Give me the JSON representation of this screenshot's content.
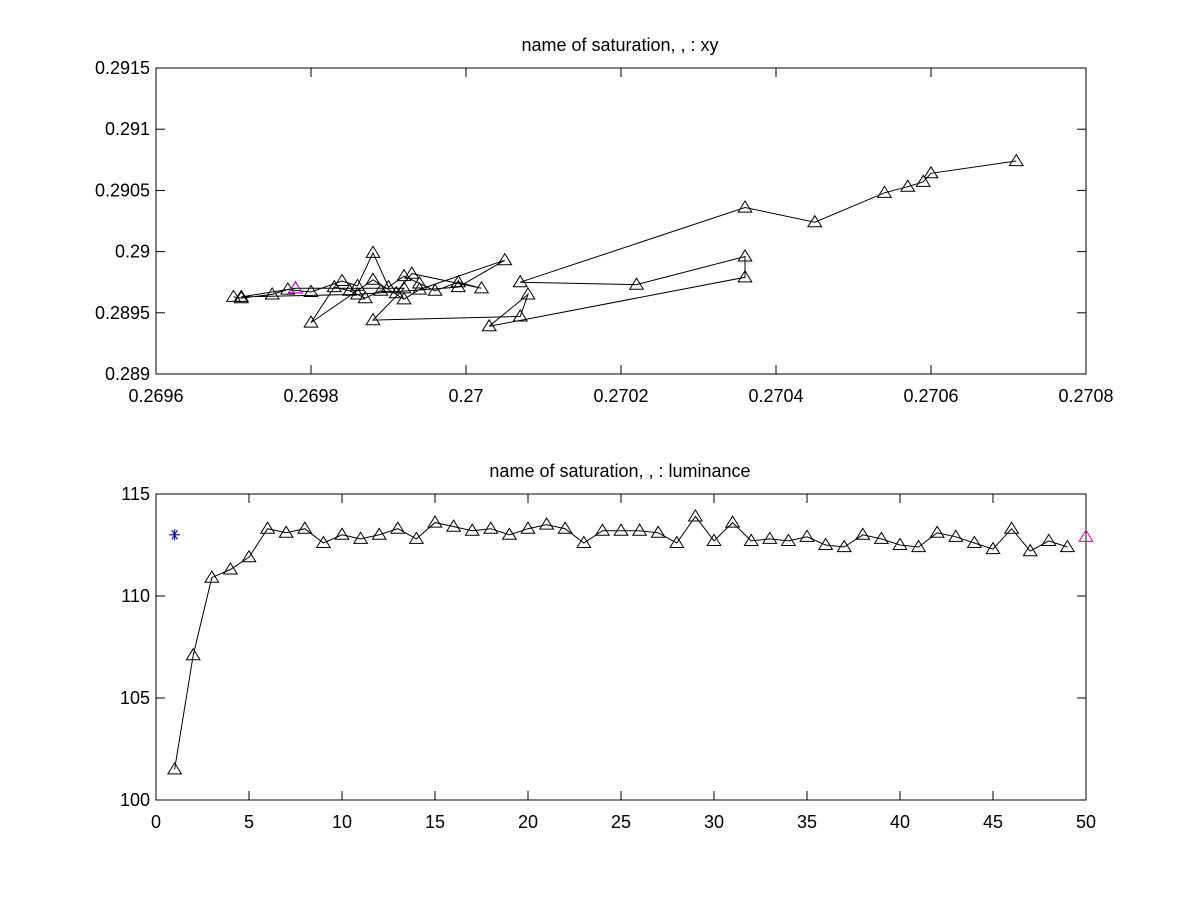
{
  "chart_data": [
    {
      "type": "line",
      "title": "name of saturation, , : xy",
      "xlim": [
        0.2696,
        0.2708
      ],
      "ylim": [
        0.289,
        0.2915
      ],
      "xticks": [
        "0.2696",
        "0.2698",
        "0.27",
        "0.2702",
        "0.2704",
        "0.2706",
        "0.2708"
      ],
      "yticks": [
        "0.289",
        "0.2895",
        "0.29",
        "0.2905",
        "0.291",
        "0.2915"
      ],
      "grid": false,
      "series": [
        {
          "marker": "triangle",
          "color": "#000000",
          "x": [
            0.2697,
            0.26971,
            0.26975,
            0.26977,
            0.2698,
            0.26984,
            0.26986,
            0.26988,
            0.2699,
            0.26992,
            0.26994,
            0.26996,
            0.26999,
            0.27002,
            0.26993,
            0.26991,
            0.26989,
            0.26987,
            0.26985,
            0.26983,
            0.2698,
            0.26988,
            0.26992,
            0.26994,
            0.27005,
            0.26999,
            0.26986,
            0.26971,
            0.26978,
            0.26992,
            0.26988,
            0.27007,
            0.27008,
            0.27003,
            0.27036,
            0.27036,
            0.27022,
            0.27007,
            0.27036,
            0.27045,
            0.27054,
            0.27057,
            0.27059,
            0.2706,
            0.27071
          ],
          "y": [
            0.28963,
            0.28962,
            0.28965,
            0.28969,
            0.28967,
            0.28976,
            0.28972,
            0.28999,
            0.28971,
            0.2898,
            0.28974,
            0.28968,
            0.28975,
            0.2897,
            0.28982,
            0.28966,
            0.28968,
            0.28962,
            0.28968,
            0.28971,
            0.28942,
            0.28977,
            0.28961,
            0.28969,
            0.28993,
            0.28971,
            0.28965,
            0.28963,
            0.2897,
            0.2897,
            0.28944,
            0.28947,
            0.28965,
            0.28939,
            0.28979,
            0.28996,
            0.28973,
            0.28975,
            0.29036,
            0.29024,
            0.29048,
            0.29053,
            0.29057,
            0.29064,
            0.29074
          ]
        }
      ],
      "highlight": {
        "x": 0.26978,
        "y": 0.2897,
        "marker": "triangle",
        "color": "#cc00cc"
      }
    },
    {
      "type": "line",
      "title": "name of saturation, , : luminance",
      "xlim": [
        0,
        50
      ],
      "ylim": [
        100,
        115
      ],
      "xticks": [
        "0",
        "5",
        "10",
        "15",
        "20",
        "25",
        "30",
        "35",
        "40",
        "45",
        "50"
      ],
      "yticks": [
        "100",
        "105",
        "110",
        "115"
      ],
      "grid": false,
      "series": [
        {
          "marker": "triangle",
          "color": "#000000",
          "x": [
            1,
            2,
            3,
            4,
            5,
            6,
            7,
            8,
            9,
            10,
            11,
            12,
            13,
            14,
            15,
            16,
            17,
            18,
            19,
            20,
            21,
            22,
            23,
            24,
            25,
            26,
            27,
            28,
            29,
            30,
            31,
            32,
            33,
            34,
            35,
            36,
            37,
            38,
            39,
            40,
            41,
            42,
            43,
            44,
            45,
            46,
            47,
            48,
            49
          ],
          "y": [
            101.5,
            107.1,
            110.9,
            111.3,
            111.9,
            113.3,
            113.1,
            113.3,
            112.6,
            113.0,
            112.8,
            113.0,
            113.3,
            112.8,
            113.6,
            113.4,
            113.2,
            113.3,
            113.0,
            113.3,
            113.5,
            113.3,
            112.6,
            113.2,
            113.2,
            113.2,
            113.1,
            112.6,
            113.9,
            112.7,
            113.6,
            112.7,
            112.8,
            112.7,
            112.9,
            112.5,
            112.4,
            113.0,
            112.8,
            112.5,
            112.4,
            113.1,
            112.9,
            112.6,
            112.3,
            113.3,
            112.2,
            112.7,
            112.4
          ]
        }
      ],
      "reference_point": {
        "x": 1,
        "y": 113.0,
        "marker": "asterisk",
        "color": "#1a1aa6"
      },
      "highlight": {
        "x": 50,
        "y": 112.9,
        "marker": "triangle",
        "color": "#cc00cc"
      }
    }
  ]
}
